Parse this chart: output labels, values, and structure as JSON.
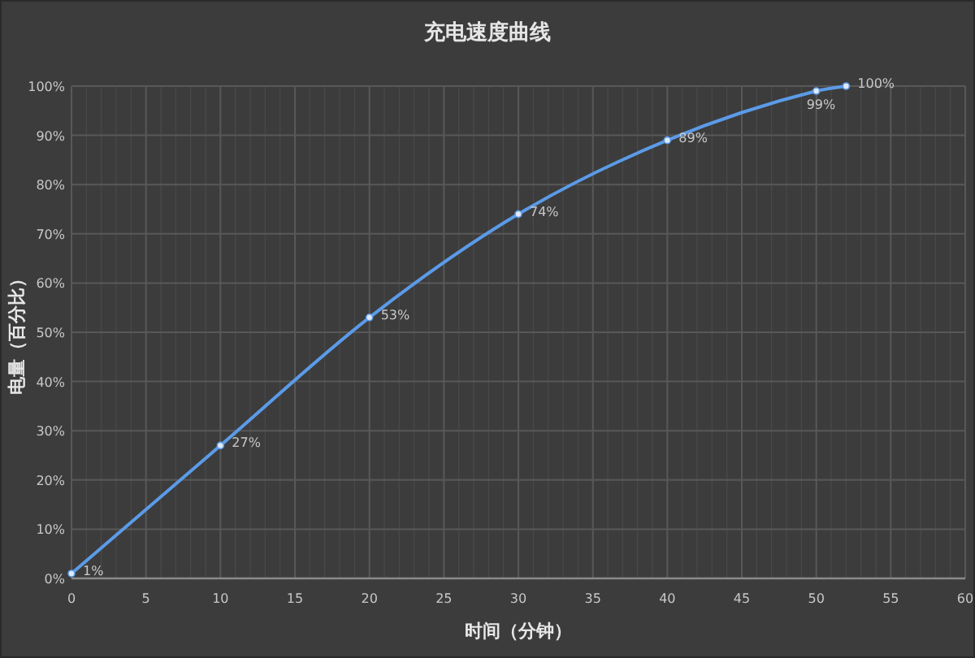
{
  "chart_data": {
    "type": "line",
    "title": "充电速度曲线",
    "xlabel": "时间（分钟）",
    "ylabel": "电量（百分比）",
    "x": [
      0,
      10,
      20,
      30,
      40,
      50,
      52
    ],
    "series": [
      {
        "color": "#5b9be8",
        "values": [
          1,
          27,
          53,
          74,
          89,
          99,
          100
        ],
        "value_labels": [
          "1%",
          "27%",
          "53%",
          "74%",
          "89%",
          "99%",
          "100%"
        ]
      }
    ],
    "xlim": [
      0,
      60
    ],
    "xticks": [
      0,
      5,
      10,
      15,
      20,
      25,
      30,
      35,
      40,
      45,
      50,
      55,
      60
    ],
    "ylim": [
      0,
      100
    ],
    "yticks": [
      {
        "value": 0,
        "label": "0%"
      },
      {
        "value": 10,
        "label": "10%"
      },
      {
        "value": 20,
        "label": "20%"
      },
      {
        "value": 30,
        "label": "30%"
      },
      {
        "value": 40,
        "label": "40%"
      },
      {
        "value": 50,
        "label": "50%"
      },
      {
        "value": 60,
        "label": "60%"
      },
      {
        "value": 70,
        "label": "70%"
      },
      {
        "value": 80,
        "label": "80%"
      },
      {
        "value": 90,
        "label": "90%"
      },
      {
        "value": 100,
        "label": "100%"
      }
    ],
    "grid": true,
    "marker": "circle",
    "line_style": "solid"
  }
}
